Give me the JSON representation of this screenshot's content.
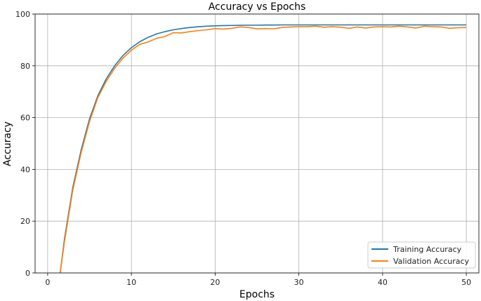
{
  "chart_data": {
    "type": "line",
    "title": "Accuracy vs Epochs",
    "xlabel": "Epochs",
    "ylabel": "Accuracy",
    "xlim": [
      -1.5,
      51.5
    ],
    "ylim": [
      0,
      100
    ],
    "xticks": [
      0,
      10,
      20,
      30,
      40,
      50
    ],
    "yticks": [
      0,
      20,
      40,
      60,
      80,
      100
    ],
    "grid": true,
    "legend_position": "bottom-right",
    "x": [
      1.5,
      2,
      3,
      4,
      5,
      6,
      7,
      8,
      9,
      10,
      11,
      12,
      13,
      14,
      15,
      16,
      17,
      18,
      19,
      20,
      21,
      22,
      23,
      24,
      25,
      26,
      27,
      28,
      29,
      30,
      31,
      32,
      33,
      34,
      35,
      36,
      37,
      38,
      39,
      40,
      41,
      42,
      43,
      44,
      45,
      46,
      47,
      48,
      49,
      50
    ],
    "series": [
      {
        "name": "Training Accuracy",
        "color": "#1f77b4",
        "values": [
          0,
          13.0,
          33.0,
          47.5,
          59.5,
          68.5,
          75.0,
          80.0,
          84.0,
          87.0,
          89.3,
          91.0,
          92.3,
          93.2,
          93.9,
          94.4,
          94.8,
          95.1,
          95.3,
          95.45,
          95.55,
          95.6,
          95.65,
          95.7,
          95.7,
          95.75,
          95.75,
          95.8,
          95.8,
          95.8,
          95.8,
          95.8,
          95.8,
          95.8,
          95.8,
          95.8,
          95.8,
          95.8,
          95.8,
          95.8,
          95.8,
          95.8,
          95.8,
          95.8,
          95.8,
          95.8,
          95.8,
          95.8,
          95.8,
          95.8
        ]
      },
      {
        "name": "Validation Accuracy",
        "color": "#ff7f0e",
        "values": [
          0,
          12.0,
          32.0,
          46.5,
          58.5,
          67.8,
          74.0,
          79.0,
          83.0,
          86.0,
          88.3,
          89.2,
          90.6,
          91.3,
          92.8,
          92.7,
          93.2,
          93.6,
          93.9,
          94.4,
          94.2,
          94.5,
          95.0,
          94.8,
          94.3,
          94.4,
          94.3,
          94.8,
          95.0,
          95.1,
          95.1,
          95.3,
          94.9,
          95.1,
          94.9,
          94.5,
          95.0,
          94.6,
          95.0,
          95.1,
          95.0,
          95.3,
          95.0,
          94.6,
          95.3,
          95.1,
          95.0,
          94.5,
          94.7,
          94.8
        ]
      }
    ]
  }
}
